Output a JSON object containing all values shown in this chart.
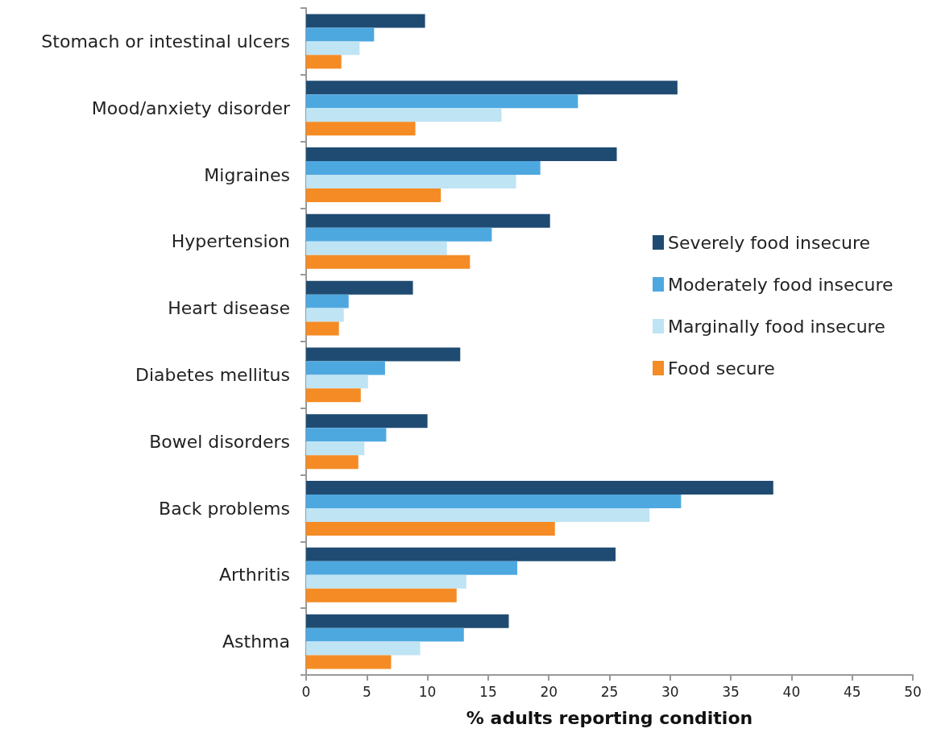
{
  "chart_data": {
    "type": "bar",
    "orientation": "horizontal",
    "xlabel": "% adults reporting condition",
    "categories": [
      "Stomach or intestinal ulcers",
      "Mood/anxiety disorder",
      "Migraines",
      "Hypertension",
      "Heart disease",
      "Diabetes mellitus",
      "Bowel disorders",
      "Back problems",
      "Arthritis",
      "Asthma"
    ],
    "series": [
      {
        "name": "Severely food insecure",
        "color": "#1f4b72",
        "values": [
          9.8,
          30.6,
          25.6,
          20.1,
          8.8,
          12.7,
          10.0,
          38.5,
          25.5,
          16.7
        ]
      },
      {
        "name": "Moderately food insecure",
        "color": "#4ea8e0",
        "values": [
          5.6,
          22.4,
          19.3,
          15.3,
          3.5,
          6.5,
          6.6,
          30.9,
          17.4,
          13.0
        ]
      },
      {
        "name": "Marginally food insecure",
        "color": "#bfe4f4",
        "values": [
          4.4,
          16.1,
          17.3,
          11.6,
          3.1,
          5.1,
          4.8,
          28.3,
          13.2,
          9.4
        ]
      },
      {
        "name": "Food secure",
        "color": "#f58b24",
        "values": [
          2.9,
          9.0,
          11.1,
          13.5,
          2.7,
          4.5,
          4.3,
          20.5,
          12.4,
          7.0
        ]
      }
    ],
    "xlim": [
      0,
      50
    ],
    "xticks": [
      0,
      5,
      10,
      15,
      20,
      25,
      30,
      35,
      40,
      45,
      50
    ],
    "grid": false,
    "legend": "right"
  }
}
